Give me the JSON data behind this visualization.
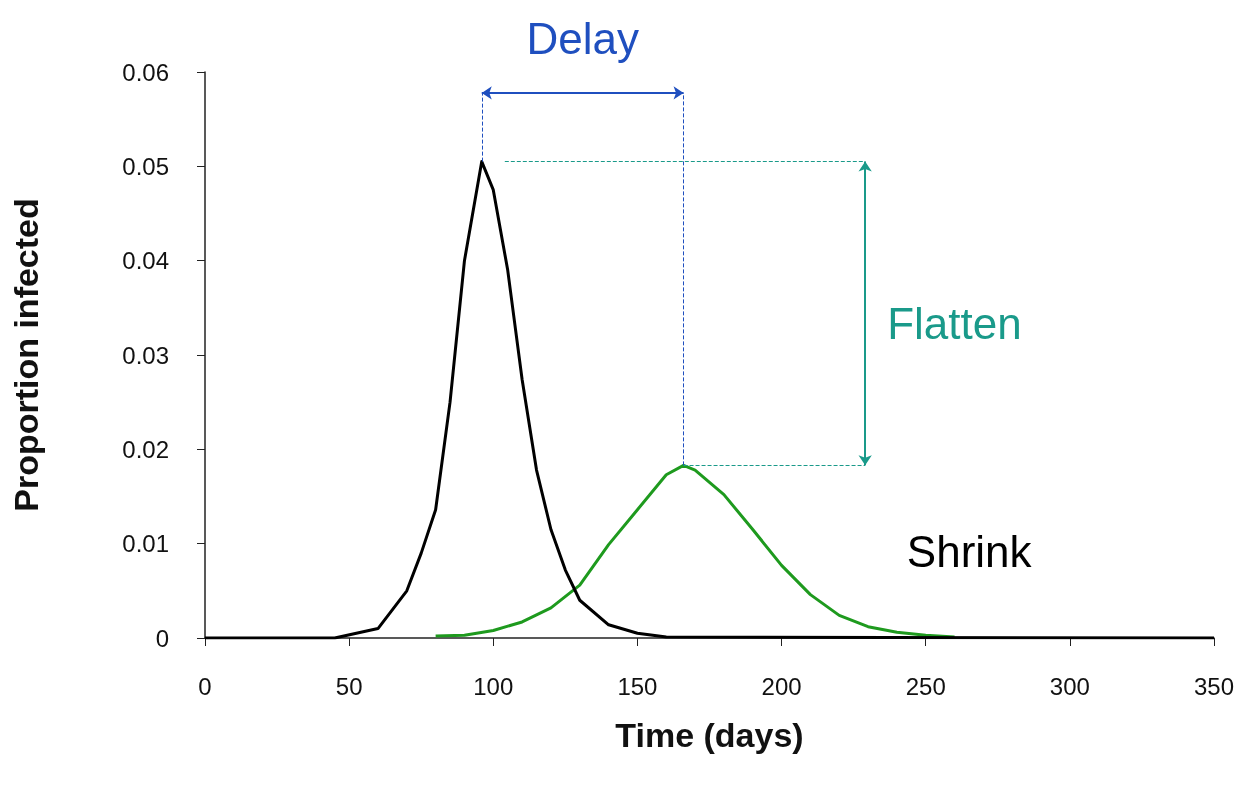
{
  "chart_data": {
    "type": "line",
    "xlabel": "Time (days)",
    "ylabel": "Proportion infected",
    "xlim": [
      0,
      350
    ],
    "xticks": [
      0,
      50,
      100,
      150,
      200,
      250,
      300,
      350
    ],
    "ylim": [
      0,
      0.06
    ],
    "yticks": [
      0,
      0.01,
      0.02,
      0.03,
      0.04,
      0.05,
      0.06
    ],
    "grid": false,
    "marker": "none",
    "line_style": "solid",
    "annotations": [
      "Delay",
      "Flatten",
      "Shrink"
    ],
    "series": [
      {
        "color": "#1e9a1e",
        "x": [
          80,
          90,
          100,
          110,
          120,
          130,
          140,
          150,
          160,
          166,
          170,
          180,
          190,
          200,
          210,
          220,
          230,
          240,
          250,
          260
        ],
        "values": [
          0.0002,
          0.0003,
          0.0008,
          0.0017,
          0.0032,
          0.0056,
          0.0099,
          0.0136,
          0.0173,
          0.0183,
          0.0178,
          0.0152,
          0.0115,
          0.0077,
          0.0046,
          0.0024,
          0.0012,
          0.0006,
          0.0003,
          0.0001
        ]
      },
      {
        "color": "#000000",
        "x": [
          0,
          45,
          60,
          70,
          75,
          80,
          85,
          90,
          96,
          100,
          105,
          110,
          115,
          120,
          125,
          130,
          140,
          150,
          160,
          350
        ],
        "values": [
          0,
          0,
          0.001,
          0.005,
          0.009,
          0.0136,
          0.025,
          0.04,
          0.0505,
          0.0475,
          0.039,
          0.0274,
          0.0178,
          0.0115,
          0.0072,
          0.004,
          0.0014,
          0.0005,
          0.0001,
          0
        ]
      }
    ]
  }
}
